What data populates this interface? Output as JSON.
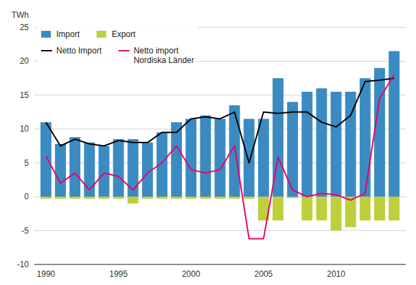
{
  "chart_data": {
    "type": "bar",
    "x": [
      1990,
      1991,
      1992,
      1993,
      1994,
      1995,
      1996,
      1997,
      1998,
      1999,
      2000,
      2001,
      2002,
      2003,
      2004,
      2005,
      2006,
      2007,
      2008,
      2009,
      2010,
      2011,
      2012,
      2013,
      2014
    ],
    "series": [
      {
        "name": "Import",
        "type": "bar",
        "color": "#3B8BC2",
        "values": [
          11.0,
          7.8,
          8.8,
          8.0,
          7.5,
          8.5,
          8.5,
          8.0,
          9.5,
          11.0,
          11.5,
          12.0,
          11.5,
          13.5,
          11.5,
          11.5,
          17.5,
          14.0,
          15.5,
          16.0,
          15.5,
          15.5,
          17.5,
          19.0,
          21.5
        ]
      },
      {
        "name": "Export",
        "type": "bar",
        "color": "#BFCE3A",
        "values": [
          -0.3,
          -0.3,
          -0.3,
          -0.3,
          -0.3,
          -0.3,
          -1.0,
          -0.3,
          -0.3,
          -0.3,
          -0.3,
          -0.3,
          -0.3,
          -0.3,
          -0.3,
          -3.5,
          -3.5,
          -0.2,
          -3.5,
          -3.5,
          -5.0,
          -4.5,
          -3.5,
          -3.5,
          -3.5
        ]
      },
      {
        "name": "Netto Import",
        "type": "line",
        "color": "#000000",
        "values": [
          11.0,
          7.5,
          8.5,
          7.8,
          7.5,
          8.3,
          8.0,
          8.0,
          9.5,
          9.5,
          11.5,
          11.8,
          11.5,
          12.5,
          5.0,
          12.5,
          12.3,
          12.5,
          12.5,
          11.0,
          10.3,
          12.0,
          17.0,
          17.2,
          17.5
        ]
      },
      {
        "name": "Netto import\nNordiska Länder",
        "type": "line",
        "color": "#E8006A",
        "values": [
          6.0,
          2.0,
          3.5,
          1.0,
          3.5,
          3.0,
          1.0,
          3.5,
          5.0,
          7.5,
          4.0,
          3.5,
          4.0,
          7.5,
          -6.2,
          -6.2,
          5.8,
          1.0,
          0.0,
          0.5,
          0.3,
          -0.5,
          0.5,
          14.5,
          18.0
        ]
      }
    ],
    "y_label": "TWh",
    "xlim": [
      1989.2,
      2014.8
    ],
    "xticks": [
      1990,
      1995,
      2000,
      2005,
      2010
    ],
    "ylim": [
      -10,
      25
    ],
    "yticks": [
      -10,
      -5,
      0,
      5,
      10,
      15,
      20,
      25
    ],
    "grid": true,
    "legend": "upper left"
  }
}
